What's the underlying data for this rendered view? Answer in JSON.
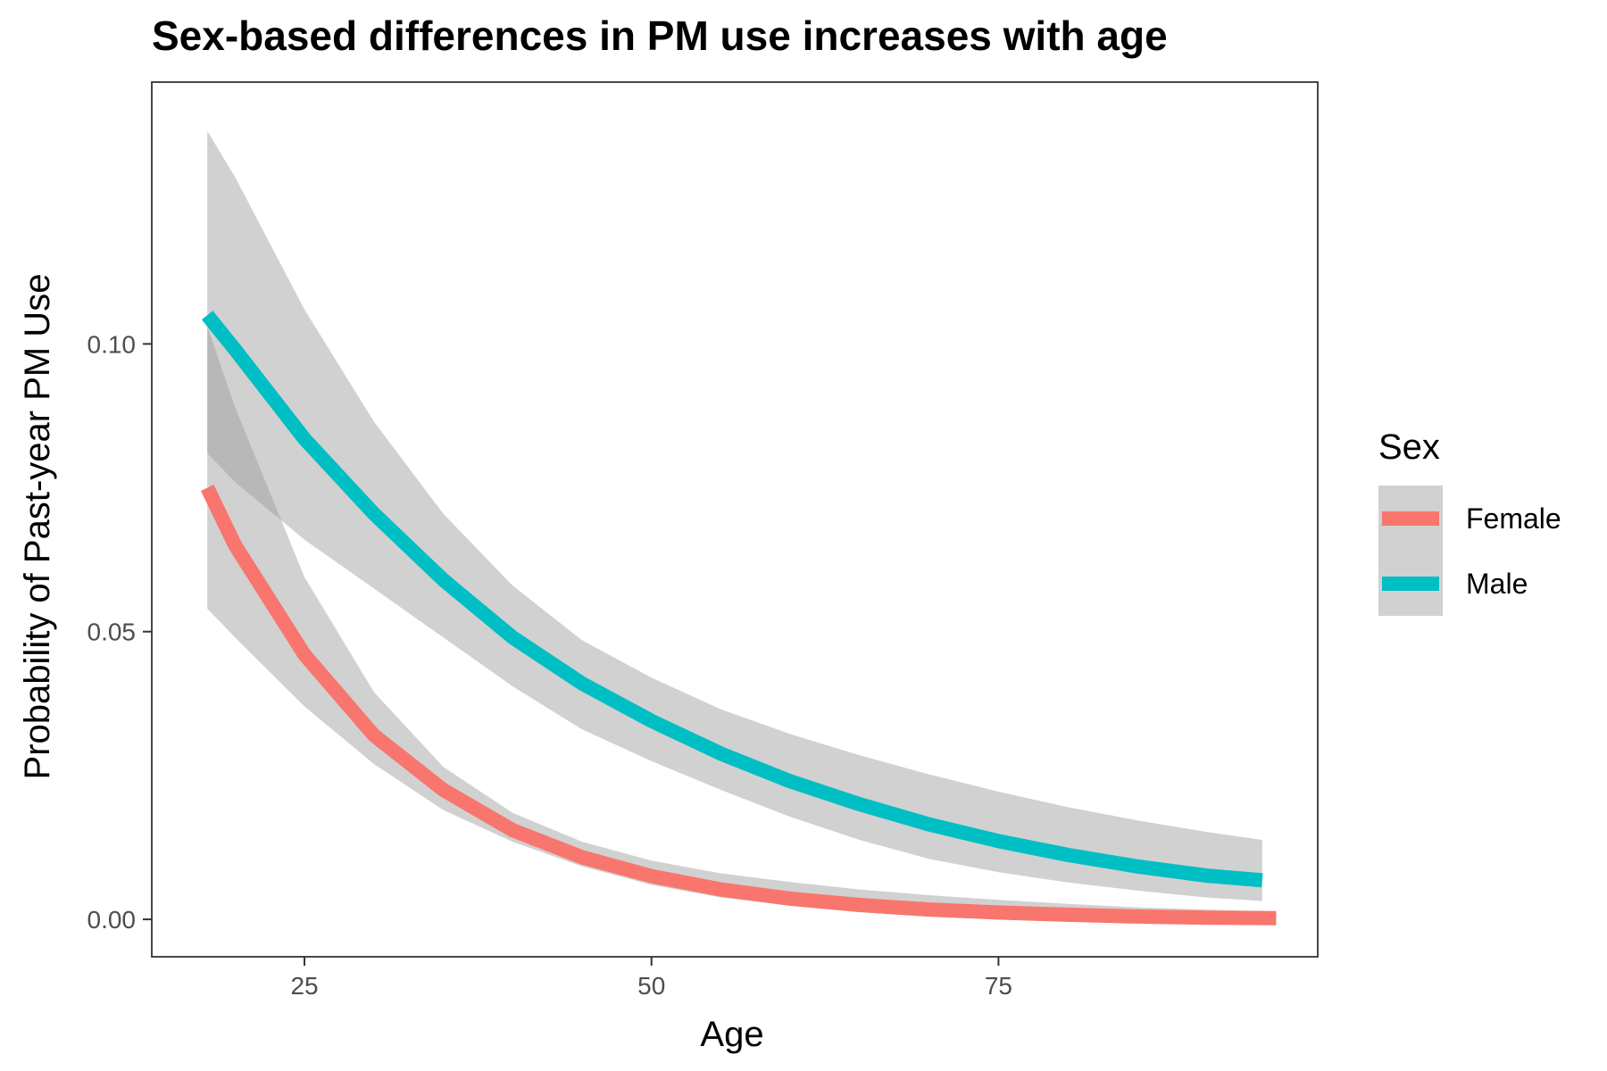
{
  "chart_data": {
    "type": "line",
    "title": "Sex-based differences in PM use increases with age",
    "xlabel": "Age",
    "ylabel": "Probability of Past-year PM Use",
    "xlim": [
      14,
      98
    ],
    "ylim": [
      -0.0065,
      0.1455
    ],
    "x_ticks": [
      25,
      50,
      75
    ],
    "x_tick_labels": [
      "25",
      "50",
      "75"
    ],
    "y_ticks": [
      0.0,
      0.05,
      0.1
    ],
    "y_tick_labels": [
      "0.00",
      "0.05",
      "0.10"
    ],
    "grid": false,
    "legend": {
      "title": "Sex",
      "position": "right"
    },
    "series": [
      {
        "name": "Female",
        "color": "#F8766D",
        "x": [
          18,
          20,
          25,
          30,
          35,
          40,
          45,
          50,
          55,
          60,
          65,
          70,
          75,
          80,
          85,
          90,
          95
        ],
        "y": [
          0.075,
          0.065,
          0.046,
          0.032,
          0.0225,
          0.0155,
          0.0108,
          0.0075,
          0.0052,
          0.0036,
          0.0025,
          0.0017,
          0.0012,
          0.0008,
          0.0005,
          0.0003,
          0.0002
        ],
        "ci_x": [
          18,
          20,
          25,
          30,
          35,
          40,
          45,
          50,
          55,
          60,
          65,
          70,
          75,
          80,
          85,
          90,
          94
        ],
        "lower": [
          0.054,
          0.049,
          0.037,
          0.027,
          0.019,
          0.0135,
          0.0092,
          0.006,
          0.0038,
          0.0024,
          0.0015,
          0.0009,
          0.0005,
          0.0003,
          0.0002,
          0.0001,
          0.0001
        ],
        "upper": [
          0.103,
          0.089,
          0.0595,
          0.0395,
          0.0265,
          0.0185,
          0.0135,
          0.0102,
          0.008,
          0.0065,
          0.0052,
          0.0042,
          0.0034,
          0.0027,
          0.0021,
          0.0017,
          0.0014
        ]
      },
      {
        "name": "Male",
        "color": "#00BFC4",
        "x": [
          18,
          20,
          25,
          30,
          35,
          40,
          45,
          50,
          55,
          60,
          65,
          70,
          75,
          80,
          85,
          90,
          94
        ],
        "y": [
          0.105,
          0.099,
          0.0835,
          0.0705,
          0.059,
          0.049,
          0.041,
          0.0345,
          0.0288,
          0.024,
          0.02,
          0.0165,
          0.0136,
          0.0112,
          0.0092,
          0.0076,
          0.0068
        ],
        "ci_x": [
          18,
          20,
          25,
          30,
          35,
          40,
          45,
          50,
          55,
          60,
          65,
          70,
          75,
          80,
          85,
          90,
          94
        ],
        "lower": [
          0.081,
          0.076,
          0.066,
          0.0575,
          0.049,
          0.0405,
          0.033,
          0.0275,
          0.0225,
          0.0178,
          0.0138,
          0.0105,
          0.0082,
          0.0064,
          0.005,
          0.0038,
          0.0032
        ],
        "upper": [
          0.137,
          0.129,
          0.106,
          0.0865,
          0.0705,
          0.058,
          0.0485,
          0.042,
          0.0365,
          0.0322,
          0.0285,
          0.0252,
          0.0222,
          0.0195,
          0.0172,
          0.0152,
          0.0138
        ]
      }
    ]
  }
}
